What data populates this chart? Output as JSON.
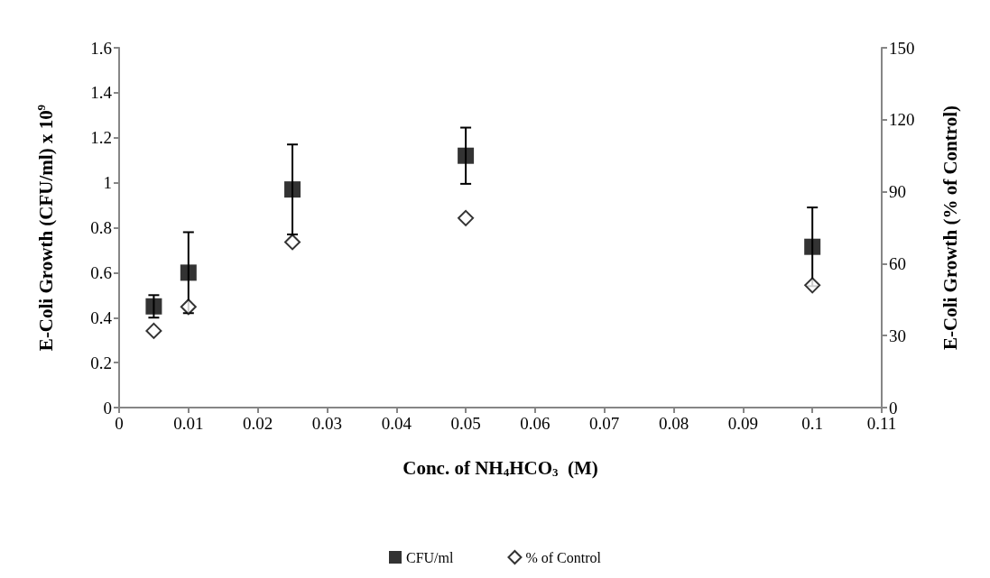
{
  "chart_data": {
    "type": "scatter",
    "xlabel": "Conc. of NH$_{4}$HCO$_{3}$  (M)",
    "ylabel": "E-Coli Growth (CFU/ml) x 10$^{9}$",
    "y2label": "E-Coli Growth (% of Control)",
    "x": [
      0.005,
      0.01,
      0.025,
      0.05,
      0.1
    ],
    "series": [
      {
        "name": "CFU/ml",
        "color": "#000000",
        "marker": "square",
        "values": [
          0.45,
          0.6,
          0.97,
          1.12,
          0.715
        ],
        "errors": [
          0.05,
          0.18,
          0.2,
          0.125,
          0.175
        ]
      },
      {
        "name": "% of Control",
        "color": "#000000",
        "marker": "diamond",
        "axis": "y2",
        "values": [
          32,
          42,
          69,
          79,
          51
        ]
      }
    ],
    "xlim": [
      0,
      0.11
    ],
    "xticks": [
      0,
      0.01,
      0.02,
      0.03,
      0.04,
      0.05,
      0.06,
      0.07,
      0.08,
      0.09,
      0.1,
      0.11
    ],
    "ylim": [
      0,
      1.6
    ],
    "yticks": [
      0,
      0.2,
      0.4,
      0.6,
      0.8,
      1,
      1.2,
      1.4,
      1.6
    ],
    "y2lim": [
      0,
      150
    ],
    "y2ticks": [
      0,
      30,
      60,
      90,
      120,
      150
    ],
    "grid": false,
    "legend": "bottom"
  }
}
